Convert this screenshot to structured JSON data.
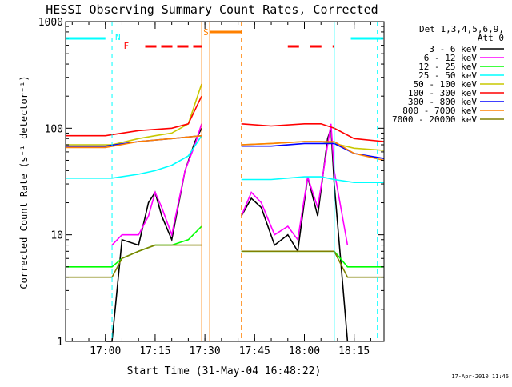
{
  "chart_data": {
    "type": "line",
    "title": "HESSI Observing Summary Count Rates, Corrected",
    "xlabel": "Start Time (31-May-04 16:48:22)",
    "ylabel": "Corrected Count Rate (s⁻¹ detector⁻¹)",
    "y_scale": "log",
    "ylim": [
      1,
      1000
    ],
    "xlim": [
      "16:48",
      "18:24"
    ],
    "x_ticks": [
      "17:00",
      "17:15",
      "17:30",
      "17:45",
      "18:00",
      "18:15"
    ],
    "y_ticks": [
      "1",
      "10",
      "100",
      "1000"
    ],
    "legend_header": [
      "Det 1,3,4,5,6,9,",
      "Att 0"
    ],
    "legend_position": "right",
    "footer": "17-Apr-2010 11:46",
    "gap": [
      "17:30",
      "17:41"
    ],
    "series": [
      {
        "name": "3 - 6 keV",
        "color": "#000000",
        "x": [
          "17:00",
          "17:02",
          "17:05",
          "17:10",
          "17:13",
          "17:15",
          "17:17",
          "17:20",
          "17:24",
          "17:27",
          "17:29",
          "17:41",
          "17:44",
          "17:47",
          "17:51",
          "17:55",
          "17:58",
          "18:01",
          "18:04",
          "18:07",
          "18:08",
          "18:09",
          "18:13"
        ],
        "values": [
          1,
          1,
          9,
          8,
          20,
          25,
          15,
          9,
          40,
          75,
          100,
          15,
          22,
          18,
          8,
          10,
          7,
          35,
          15,
          80,
          100,
          30,
          1
        ]
      },
      {
        "name": "6 - 12 keV",
        "color": "#ff00ff",
        "x": [
          "17:02",
          "17:05",
          "17:10",
          "17:13",
          "17:15",
          "17:17",
          "17:20",
          "17:24",
          "17:27",
          "17:29",
          "17:41",
          "17:44",
          "17:47",
          "17:51",
          "17:55",
          "17:58",
          "18:01",
          "18:04",
          "18:07",
          "18:08",
          "18:09",
          "18:13"
        ],
        "values": [
          8,
          10,
          10,
          15,
          25,
          18,
          10,
          40,
          70,
          110,
          15,
          25,
          20,
          10,
          12,
          9,
          35,
          18,
          70,
          110,
          40,
          8
        ]
      },
      {
        "name": "12 - 25 keV",
        "color": "#00ff00",
        "x": [
          "16:48",
          "17:02",
          "17:05",
          "17:10",
          "17:15",
          "17:20",
          "17:25",
          "17:29",
          "17:41",
          "17:50",
          "18:00",
          "18:09",
          "18:13",
          "18:24"
        ],
        "values": [
          5,
          5,
          6,
          7,
          8,
          8,
          9,
          12,
          7,
          7,
          7,
          7,
          5,
          5
        ]
      },
      {
        "name": "25 - 50 keV",
        "color": "#00ffff",
        "x": [
          "16:48",
          "17:02",
          "17:10",
          "17:15",
          "17:20",
          "17:25",
          "17:29",
          "17:41",
          "17:50",
          "18:00",
          "18:05",
          "18:09",
          "18:15",
          "18:24"
        ],
        "values": [
          34,
          34,
          37,
          40,
          45,
          55,
          85,
          33,
          33,
          35,
          35,
          33,
          31,
          31
        ]
      },
      {
        "name": "50 - 100 keV",
        "color": "#c8c800",
        "x": [
          "16:48",
          "17:02",
          "17:10",
          "17:15",
          "17:20",
          "17:25",
          "17:29",
          "17:41",
          "17:50",
          "18:00",
          "18:05",
          "18:09",
          "18:15",
          "18:24"
        ],
        "values": [
          70,
          70,
          80,
          85,
          90,
          110,
          260,
          70,
          72,
          75,
          75,
          72,
          65,
          62
        ]
      },
      {
        "name": "100 - 300 keV",
        "color": "#ff0000",
        "x": [
          "16:48",
          "17:00",
          "17:10",
          "17:20",
          "17:25",
          "17:29",
          "17:41",
          "17:50",
          "18:00",
          "18:05",
          "18:09",
          "18:15",
          "18:24"
        ],
        "values": [
          85,
          85,
          95,
          100,
          110,
          200,
          110,
          105,
          110,
          110,
          100,
          80,
          75
        ]
      },
      {
        "name": "300 - 800 keV",
        "color": "#0000ff",
        "x": [
          "16:48",
          "17:00",
          "17:10",
          "17:20",
          "17:29",
          "17:41",
          "17:50",
          "18:00",
          "18:09",
          "18:15",
          "18:24"
        ],
        "values": [
          68,
          68,
          75,
          80,
          85,
          68,
          68,
          72,
          72,
          58,
          52
        ]
      },
      {
        "name": "800 - 7000 keV",
        "color": "#ff8000",
        "x": [
          "16:48",
          "17:00",
          "17:10",
          "17:20",
          "17:29",
          "17:41",
          "17:50",
          "18:00",
          "18:09",
          "18:15",
          "18:24"
        ],
        "values": [
          66,
          66,
          75,
          80,
          85,
          70,
          72,
          75,
          75,
          58,
          50
        ]
      },
      {
        "name": "7000 - 20000 keV",
        "color": "#808000",
        "x": [
          "16:48",
          "17:02",
          "17:05",
          "17:10",
          "17:15",
          "17:20",
          "17:25",
          "17:29",
          "17:41",
          "17:50",
          "18:00",
          "18:09",
          "18:13",
          "18:24"
        ],
        "values": [
          4,
          4,
          6,
          7,
          8,
          8,
          8,
          8,
          7,
          7,
          7,
          7,
          4,
          4
        ]
      }
    ],
    "flag_labels": [
      "N",
      "F",
      "S"
    ]
  }
}
